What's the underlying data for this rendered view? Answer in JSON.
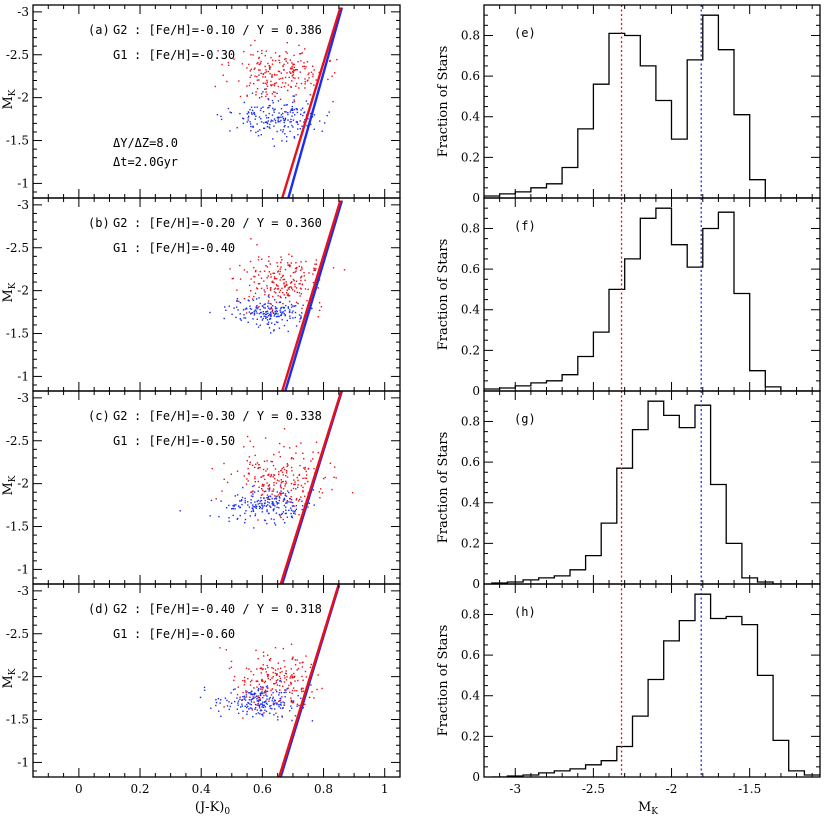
{
  "chart_data": [
    {
      "type": "scatter",
      "panel": "(a)",
      "ylabel": "M",
      "ylabel_sub": "K",
      "xlim": [
        -0.15,
        1.05
      ],
      "ylim": [
        -0.83,
        -3.08
      ],
      "xticks": [
        "0",
        "0.2",
        "0.4",
        "0.6",
        "0.8",
        "1"
      ],
      "yticks": [
        "-1",
        "-1.5",
        "-2",
        "-2.5",
        "-3"
      ],
      "series": [
        {
          "name": "G2",
          "label": "[Fe/H]=-0.10 / Y = 0.386",
          "color": "#e8101a",
          "cloud": {
            "cx": 0.655,
            "cy": -2.28,
            "sx": 0.075,
            "sy": 0.16,
            "n": 220,
            "seed": 11
          },
          "line": [
            [
              0.665,
              -0.83
            ],
            [
              0.855,
              -3.05
            ]
          ]
        },
        {
          "name": "G1",
          "label": "[Fe/H]=-0.30",
          "color": "#1a2ef0",
          "cloud": {
            "cx": 0.64,
            "cy": -1.78,
            "sx": 0.07,
            "sy": 0.11,
            "n": 200,
            "seed": 23
          },
          "line": [
            [
              0.685,
              -0.83
            ],
            [
              0.86,
              -3.05
            ]
          ]
        }
      ],
      "notes": [
        "ΔY/ΔZ=8.0",
        "Δt=2.0Gyr"
      ]
    },
    {
      "type": "scatter",
      "panel": "(b)",
      "ylabel": "M",
      "ylabel_sub": "K",
      "xlim": [
        -0.15,
        1.05
      ],
      "ylim": [
        -0.83,
        -3.08
      ],
      "xticks": [
        "0",
        "0.2",
        "0.4",
        "0.6",
        "0.8",
        "1"
      ],
      "yticks": [
        "-1",
        "-1.5",
        "-2",
        "-2.5",
        "-3"
      ],
      "series": [
        {
          "name": "G2",
          "label": "[Fe/H]=-0.20 / Y = 0.360",
          "color": "#e8101a",
          "cloud": {
            "cx": 0.66,
            "cy": -2.12,
            "sx": 0.075,
            "sy": 0.17,
            "n": 220,
            "seed": 31
          },
          "line": [
            [
              0.665,
              -0.83
            ],
            [
              0.855,
              -3.05
            ]
          ]
        },
        {
          "name": "G1",
          "label": "[Fe/H]=-0.40",
          "color": "#1a2ef0",
          "cloud": {
            "cx": 0.62,
            "cy": -1.75,
            "sx": 0.065,
            "sy": 0.09,
            "n": 190,
            "seed": 43
          },
          "line": [
            [
              0.675,
              -0.83
            ],
            [
              0.86,
              -3.05
            ]
          ]
        }
      ]
    },
    {
      "type": "scatter",
      "panel": "(c)",
      "ylabel": "M",
      "ylabel_sub": "K",
      "xlim": [
        -0.15,
        1.05
      ],
      "ylim": [
        -0.83,
        -3.08
      ],
      "xticks": [
        "0",
        "0.2",
        "0.4",
        "0.6",
        "0.8",
        "1"
      ],
      "yticks": [
        "-1",
        "-1.5",
        "-2",
        "-2.5",
        "-3"
      ],
      "series": [
        {
          "name": "G2",
          "label": "[Fe/H]=-0.30 / Y = 0.338",
          "color": "#e8101a",
          "cloud": {
            "cx": 0.66,
            "cy": -2.08,
            "sx": 0.085,
            "sy": 0.2,
            "n": 230,
            "seed": 53
          },
          "line": [
            [
              0.66,
              -0.83
            ],
            [
              0.86,
              -3.1
            ]
          ]
        },
        {
          "name": "G1",
          "label": "[Fe/H]=-0.50",
          "color": "#1a2ef0",
          "cloud": {
            "cx": 0.61,
            "cy": -1.74,
            "sx": 0.07,
            "sy": 0.1,
            "n": 200,
            "seed": 61
          },
          "line": [
            [
              0.665,
              -0.83
            ],
            [
              0.86,
              -3.08
            ]
          ]
        }
      ]
    },
    {
      "type": "scatter",
      "panel": "(d)",
      "ylabel": "M",
      "ylabel_sub": "K",
      "xlabel": "(J-K)",
      "xlabel_sub": "0",
      "xlim": [
        -0.15,
        1.05
      ],
      "ylim": [
        -0.83,
        -3.08
      ],
      "xticks": [
        "0",
        "0.2",
        "0.4",
        "0.6",
        "0.8",
        "1"
      ],
      "yticks": [
        "-1",
        "-1.5",
        "-2",
        "-2.5",
        "-3"
      ],
      "series": [
        {
          "name": "G2",
          "label": "[Fe/H]=-0.40 / Y = 0.318",
          "color": "#e8101a",
          "cloud": {
            "cx": 0.64,
            "cy": -1.95,
            "sx": 0.075,
            "sy": 0.18,
            "n": 220,
            "seed": 71
          },
          "line": [
            [
              0.655,
              -0.83
            ],
            [
              0.85,
              -3.08
            ]
          ]
        },
        {
          "name": "G1",
          "label": "[Fe/H]=-0.60",
          "color": "#1a2ef0",
          "cloud": {
            "cx": 0.59,
            "cy": -1.72,
            "sx": 0.07,
            "sy": 0.09,
            "n": 200,
            "seed": 83
          },
          "line": [
            [
              0.66,
              -0.83
            ],
            [
              0.85,
              -3.06
            ]
          ]
        }
      ]
    },
    {
      "type": "histogram",
      "panel": "(e)",
      "ylabel": "Fraction of Stars",
      "xlim": [
        -3.2,
        -1.05
      ],
      "ylim": [
        0,
        0.95
      ],
      "xticks": [
        "-3",
        "-2.5",
        "-2",
        "-1.5"
      ],
      "yticks": [
        "0",
        "0.2",
        "0.4",
        "0.6",
        "0.8"
      ],
      "bin_edges": [
        -3.2,
        -3.1,
        -3.0,
        -2.9,
        -2.8,
        -2.7,
        -2.6,
        -2.5,
        -2.4,
        -2.3,
        -2.2,
        -2.1,
        -2.0,
        -1.9,
        -1.8,
        -1.7,
        -1.6,
        -1.5,
        -1.4,
        -1.3,
        -1.2,
        -1.1
      ],
      "values": [
        0.01,
        0.02,
        0.03,
        0.05,
        0.07,
        0.15,
        0.34,
        0.56,
        0.81,
        0.8,
        0.65,
        0.48,
        0.29,
        0.68,
        0.9,
        0.73,
        0.41,
        0.09,
        0.0,
        0.0,
        0.0
      ],
      "vlines": [
        {
          "x": -2.32,
          "color": "#e8101a"
        },
        {
          "x": -1.81,
          "color": "#1a2ef0"
        }
      ]
    },
    {
      "type": "histogram",
      "panel": "(f)",
      "ylabel": "Fraction of Stars",
      "xlim": [
        -3.2,
        -1.05
      ],
      "ylim": [
        0,
        0.95
      ],
      "xticks": [
        "-3",
        "-2.5",
        "-2",
        "-1.5"
      ],
      "yticks": [
        "0",
        "0.2",
        "0.4",
        "0.6",
        "0.8"
      ],
      "bin_edges": [
        -3.2,
        -3.1,
        -3.0,
        -2.9,
        -2.8,
        -2.7,
        -2.6,
        -2.5,
        -2.4,
        -2.3,
        -2.2,
        -2.1,
        -2.0,
        -1.9,
        -1.8,
        -1.7,
        -1.6,
        -1.5,
        -1.4,
        -1.3,
        -1.2,
        -1.1
      ],
      "values": [
        0.01,
        0.015,
        0.025,
        0.04,
        0.05,
        0.08,
        0.17,
        0.29,
        0.5,
        0.65,
        0.85,
        0.9,
        0.72,
        0.61,
        0.8,
        0.88,
        0.48,
        0.1,
        0.02,
        0.0,
        0.0
      ],
      "vlines": [
        {
          "x": -2.32,
          "color": "#e8101a"
        },
        {
          "x": -1.81,
          "color": "#1a2ef0"
        }
      ]
    },
    {
      "type": "histogram",
      "panel": "(g)",
      "ylabel": "Fraction of Stars",
      "xlim": [
        -3.2,
        -1.05
      ],
      "ylim": [
        0,
        0.95
      ],
      "xticks": [
        "-3",
        "-2.5",
        "-2",
        "-1.5"
      ],
      "yticks": [
        "0",
        "0.2",
        "0.4",
        "0.6",
        "0.8"
      ],
      "bin_edges": [
        -3.2,
        -3.1,
        -3.0,
        -2.9,
        -2.8,
        -2.7,
        -2.6,
        -2.5,
        -2.4,
        -2.3,
        -2.2,
        -2.1,
        -2.0,
        -1.9,
        -1.8,
        -1.7,
        -1.6,
        -1.5,
        -1.4,
        -1.3,
        -1.2,
        -1.1
      ],
      "values": [
        0.005,
        0.01,
        0.02,
        0.03,
        0.04,
        0.07,
        0.14,
        0.3,
        0.57,
        0.76,
        0.9,
        0.83,
        0.77,
        0.88,
        0.49,
        0.2,
        0.03,
        0.01,
        0.0,
        0.0,
        0.0
      ],
      "x_offset": 0.05,
      "vlines": [
        {
          "x": -2.32,
          "color": "#e8101a"
        },
        {
          "x": -1.81,
          "color": "#1a2ef0"
        }
      ]
    },
    {
      "type": "histogram",
      "panel": "(h)",
      "ylabel": "Fraction of Stars",
      "xlabel": "M",
      "xlabel_sub": "K",
      "xlim": [
        -3.2,
        -1.05
      ],
      "ylim": [
        0,
        0.95
      ],
      "xticks": [
        "-3",
        "-2.5",
        "-2",
        "-1.5"
      ],
      "yticks": [
        "0",
        "0.2",
        "0.4",
        "0.6",
        "0.8"
      ],
      "bin_edges": [
        -3.2,
        -3.1,
        -3.0,
        -2.9,
        -2.8,
        -2.7,
        -2.6,
        -2.5,
        -2.4,
        -2.3,
        -2.2,
        -2.1,
        -2.0,
        -1.9,
        -1.8,
        -1.7,
        -1.6,
        -1.5,
        -1.4,
        -1.3,
        -1.2,
        -1.1
      ],
      "values": [
        0.0,
        0.005,
        0.01,
        0.02,
        0.03,
        0.04,
        0.06,
        0.08,
        0.15,
        0.3,
        0.48,
        0.67,
        0.77,
        0.9,
        0.78,
        0.79,
        0.75,
        0.5,
        0.18,
        0.03,
        0.01
      ],
      "x_offset": 0.05,
      "vlines": [
        {
          "x": -2.32,
          "color": "#e8101a"
        },
        {
          "x": -1.81,
          "color": "#1a2ef0"
        }
      ]
    }
  ]
}
